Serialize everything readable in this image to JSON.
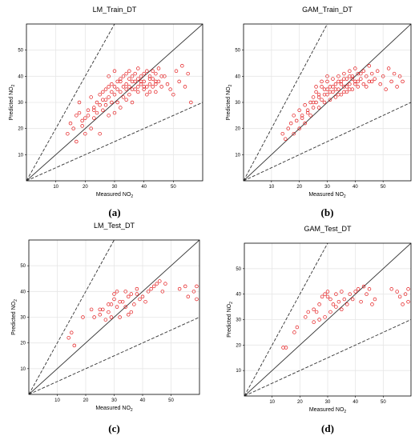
{
  "chart_data": [
    {
      "type": "scatter",
      "title": "LM_Train_DT",
      "caption": "(a)",
      "xlabel": "Measured NO",
      "ylabel": "Predicted NO",
      "label_subscript": "2",
      "xlim": [
        0,
        60
      ],
      "ylim": [
        0,
        60
      ],
      "xticks": [
        10,
        20,
        30,
        40,
        50
      ],
      "yticks": [
        10,
        20,
        30,
        40,
        50
      ],
      "grid": true,
      "reference_lines": [
        {
          "name": "1:1",
          "slope": 1,
          "style": "solid"
        },
        {
          "name": "upper",
          "slope": 2,
          "style": "dashed"
        },
        {
          "name": "lower",
          "slope": 0.5,
          "style": "dashed"
        }
      ],
      "marker_color": "#e41a1c",
      "points": [
        [
          14,
          18
        ],
        [
          15,
          22
        ],
        [
          16,
          20
        ],
        [
          17,
          15
        ],
        [
          17,
          25
        ],
        [
          18,
          26
        ],
        [
          18,
          30
        ],
        [
          19,
          21
        ],
        [
          20,
          18
        ],
        [
          20,
          24
        ],
        [
          21,
          27
        ],
        [
          22,
          20
        ],
        [
          22,
          32
        ],
        [
          23,
          24
        ],
        [
          23,
          28
        ],
        [
          24,
          26
        ],
        [
          24,
          30
        ],
        [
          25,
          18
        ],
        [
          25,
          33
        ],
        [
          26,
          27
        ],
        [
          26,
          31
        ],
        [
          27,
          29
        ],
        [
          27,
          35
        ],
        [
          28,
          25
        ],
        [
          28,
          32
        ],
        [
          29,
          30
        ],
        [
          29,
          37
        ],
        [
          30,
          26
        ],
        [
          30,
          33
        ],
        [
          30,
          36
        ],
        [
          31,
          30
        ],
        [
          31,
          38
        ],
        [
          32,
          34
        ],
        [
          32,
          28
        ],
        [
          33,
          36
        ],
        [
          33,
          40
        ],
        [
          34,
          31
        ],
        [
          34,
          37
        ],
        [
          35,
          33
        ],
        [
          35,
          39
        ],
        [
          35,
          42
        ],
        [
          36,
          35
        ],
        [
          36,
          30
        ],
        [
          37,
          38
        ],
        [
          37,
          41
        ],
        [
          38,
          34
        ],
        [
          38,
          36
        ],
        [
          39,
          40
        ],
        [
          39,
          37
        ],
        [
          40,
          35
        ],
        [
          40,
          38
        ],
        [
          41,
          42
        ],
        [
          41,
          33
        ],
        [
          42,
          37
        ],
        [
          42,
          40
        ],
        [
          43,
          36
        ],
        [
          43,
          39
        ],
        [
          44,
          41
        ],
        [
          44,
          34
        ],
        [
          45,
          38
        ],
        [
          45,
          43
        ],
        [
          46,
          36
        ],
        [
          47,
          40
        ],
        [
          48,
          37
        ],
        [
          49,
          35
        ],
        [
          50,
          33
        ],
        [
          51,
          42
        ],
        [
          52,
          38
        ],
        [
          53,
          44
        ],
        [
          54,
          36
        ],
        [
          55,
          41
        ],
        [
          56,
          30
        ],
        [
          28,
          40
        ],
        [
          30,
          42
        ],
        [
          32,
          38
        ],
        [
          34,
          35
        ],
        [
          36,
          40
        ],
        [
          38,
          43
        ],
        [
          40,
          41
        ],
        [
          42,
          39
        ],
        [
          44,
          37
        ],
        [
          46,
          40
        ],
        [
          33,
          32
        ],
        [
          35,
          36
        ],
        [
          37,
          35
        ],
        [
          39,
          38
        ],
        [
          41,
          36
        ],
        [
          43,
          42
        ],
        [
          31,
          35
        ],
        [
          29,
          34
        ],
        [
          27,
          31
        ],
        [
          25,
          29
        ],
        [
          23,
          27
        ],
        [
          21,
          25
        ],
        [
          19,
          23
        ],
        [
          26,
          34
        ],
        [
          28,
          36
        ],
        [
          32,
          39
        ],
        [
          34,
          41
        ],
        [
          36,
          38
        ],
        [
          38,
          39
        ],
        [
          40,
          36
        ],
        [
          42,
          34
        ],
        [
          44,
          38
        ]
      ]
    },
    {
      "type": "scatter",
      "title": "GAM_Train_DT",
      "caption": "(b)",
      "xlabel": "Measured NO",
      "ylabel": "Predicted NO",
      "label_subscript": "2",
      "xlim": [
        0,
        60
      ],
      "ylim": [
        0,
        60
      ],
      "xticks": [
        10,
        20,
        30,
        40,
        50
      ],
      "yticks": [
        10,
        20,
        30,
        40,
        50
      ],
      "grid": true,
      "reference_lines": [
        {
          "name": "1:1",
          "slope": 1,
          "style": "solid"
        },
        {
          "name": "upper",
          "slope": 2,
          "style": "dashed"
        },
        {
          "name": "lower",
          "slope": 0.5,
          "style": "dashed"
        }
      ],
      "marker_color": "#e41a1c",
      "points": [
        [
          14,
          18
        ],
        [
          15,
          16
        ],
        [
          16,
          20
        ],
        [
          17,
          22
        ],
        [
          18,
          18
        ],
        [
          18,
          25
        ],
        [
          19,
          23
        ],
        [
          20,
          20
        ],
        [
          20,
          27
        ],
        [
          21,
          25
        ],
        [
          22,
          29
        ],
        [
          22,
          22
        ],
        [
          23,
          27
        ],
        [
          24,
          30
        ],
        [
          24,
          25
        ],
        [
          25,
          28
        ],
        [
          25,
          32
        ],
        [
          26,
          30
        ],
        [
          26,
          34
        ],
        [
          27,
          28
        ],
        [
          27,
          33
        ],
        [
          28,
          31
        ],
        [
          28,
          36
        ],
        [
          29,
          30
        ],
        [
          29,
          35
        ],
        [
          30,
          33
        ],
        [
          30,
          38
        ],
        [
          31,
          31
        ],
        [
          31,
          36
        ],
        [
          32,
          34
        ],
        [
          32,
          39
        ],
        [
          33,
          32
        ],
        [
          33,
          37
        ],
        [
          34,
          35
        ],
        [
          34,
          40
        ],
        [
          35,
          33
        ],
        [
          35,
          38
        ],
        [
          36,
          36
        ],
        [
          36,
          41
        ],
        [
          37,
          34
        ],
        [
          37,
          39
        ],
        [
          38,
          37
        ],
        [
          38,
          42
        ],
        [
          39,
          35
        ],
        [
          39,
          40
        ],
        [
          40,
          38
        ],
        [
          40,
          43
        ],
        [
          41,
          36
        ],
        [
          41,
          41
        ],
        [
          42,
          39
        ],
        [
          43,
          37
        ],
        [
          43,
          42
        ],
        [
          44,
          40
        ],
        [
          45,
          38
        ],
        [
          45,
          44
        ],
        [
          46,
          41
        ],
        [
          47,
          39
        ],
        [
          48,
          42
        ],
        [
          49,
          37
        ],
        [
          50,
          40
        ],
        [
          51,
          35
        ],
        [
          52,
          43
        ],
        [
          53,
          38
        ],
        [
          54,
          41
        ],
        [
          55,
          36
        ],
        [
          56,
          40
        ],
        [
          57,
          38
        ],
        [
          28,
          38
        ],
        [
          30,
          40
        ],
        [
          32,
          36
        ],
        [
          34,
          38
        ],
        [
          36,
          39
        ],
        [
          38,
          40
        ],
        [
          40,
          37
        ],
        [
          42,
          41
        ],
        [
          44,
          36
        ],
        [
          46,
          38
        ],
        [
          33,
          35
        ],
        [
          35,
          37
        ],
        [
          37,
          36
        ],
        [
          39,
          39
        ],
        [
          41,
          38
        ],
        [
          31,
          34
        ],
        [
          29,
          33
        ],
        [
          27,
          32
        ],
        [
          25,
          30
        ],
        [
          23,
          26
        ],
        [
          21,
          24
        ],
        [
          26,
          36
        ],
        [
          30,
          35
        ],
        [
          34,
          33
        ],
        [
          36,
          34
        ],
        [
          38,
          35
        ]
      ]
    },
    {
      "type": "scatter",
      "title": "LM_Test_DT",
      "caption": "(c)",
      "xlabel": "Measured NO",
      "ylabel": "Predicted NO",
      "label_subscript": "2",
      "xlim": [
        0,
        60
      ],
      "ylim": [
        0,
        60
      ],
      "xticks": [
        10,
        20,
        30,
        40,
        50
      ],
      "yticks": [
        10,
        20,
        30,
        40,
        50
      ],
      "grid": true,
      "reference_lines": [
        {
          "name": "1:1",
          "slope": 1,
          "style": "solid"
        },
        {
          "name": "upper",
          "slope": 2,
          "style": "dashed"
        },
        {
          "name": "lower",
          "slope": 0.5,
          "style": "dashed"
        }
      ],
      "marker_color": "#e41a1c",
      "points": [
        [
          14,
          22
        ],
        [
          15,
          24
        ],
        [
          16,
          19
        ],
        [
          19,
          30
        ],
        [
          22,
          33
        ],
        [
          23,
          30
        ],
        [
          25,
          33
        ],
        [
          25,
          31
        ],
        [
          27,
          29
        ],
        [
          28,
          32
        ],
        [
          28,
          35
        ],
        [
          29,
          30
        ],
        [
          30,
          39
        ],
        [
          30,
          37
        ],
        [
          31,
          34
        ],
        [
          31,
          40
        ],
        [
          32,
          30
        ],
        [
          33,
          36
        ],
        [
          34,
          34
        ],
        [
          34,
          40
        ],
        [
          35,
          31
        ],
        [
          35,
          38
        ],
        [
          36,
          39
        ],
        [
          37,
          35
        ],
        [
          38,
          39
        ],
        [
          38,
          41
        ],
        [
          39,
          37
        ],
        [
          40,
          38
        ],
        [
          41,
          36
        ],
        [
          42,
          40
        ],
        [
          43,
          41
        ],
        [
          44,
          42
        ],
        [
          45,
          43
        ],
        [
          46,
          44
        ],
        [
          47,
          40
        ],
        [
          48,
          43
        ],
        [
          53,
          41
        ],
        [
          55,
          42
        ],
        [
          56,
          38
        ],
        [
          58,
          40
        ],
        [
          59,
          42
        ],
        [
          59,
          37
        ],
        [
          36,
          32
        ],
        [
          32,
          36
        ],
        [
          29,
          35
        ],
        [
          26,
          33
        ]
      ]
    },
    {
      "type": "scatter",
      "title": "GAM_Test_DT",
      "caption": "(d)",
      "xlabel": "Measured NO",
      "ylabel": "Predicted NO",
      "label_subscript": "2",
      "xlim": [
        0,
        60
      ],
      "ylim": [
        0,
        60
      ],
      "xticks": [
        10,
        20,
        30,
        40,
        50
      ],
      "yticks": [
        10,
        20,
        30,
        40,
        50
      ],
      "grid": true,
      "reference_lines": [
        {
          "name": "1:1",
          "slope": 1,
          "style": "solid"
        },
        {
          "name": "upper",
          "slope": 2,
          "style": "dashed"
        },
        {
          "name": "lower",
          "slope": 0.5,
          "style": "dashed"
        }
      ],
      "marker_color": "#e41a1c",
      "points": [
        [
          14,
          19
        ],
        [
          15,
          19
        ],
        [
          18,
          25
        ],
        [
          19,
          27
        ],
        [
          22,
          31
        ],
        [
          23,
          33
        ],
        [
          25,
          34
        ],
        [
          26,
          33
        ],
        [
          27,
          36
        ],
        [
          28,
          39
        ],
        [
          29,
          40
        ],
        [
          30,
          39
        ],
        [
          30,
          41
        ],
        [
          31,
          38
        ],
        [
          32,
          36
        ],
        [
          33,
          40
        ],
        [
          34,
          37
        ],
        [
          35,
          34
        ],
        [
          35,
          41
        ],
        [
          36,
          38
        ],
        [
          37,
          36
        ],
        [
          38,
          40
        ],
        [
          39,
          38
        ],
        [
          40,
          41
        ],
        [
          41,
          42
        ],
        [
          42,
          37
        ],
        [
          43,
          43
        ],
        [
          44,
          40
        ],
        [
          45,
          42
        ],
        [
          46,
          36
        ],
        [
          47,
          38
        ],
        [
          53,
          42
        ],
        [
          55,
          41
        ],
        [
          56,
          39
        ],
        [
          57,
          36
        ],
        [
          58,
          40
        ],
        [
          59,
          42
        ],
        [
          59,
          37
        ],
        [
          33,
          35
        ],
        [
          31,
          33
        ],
        [
          29,
          31
        ],
        [
          27,
          30
        ],
        [
          25,
          29
        ]
      ]
    }
  ]
}
